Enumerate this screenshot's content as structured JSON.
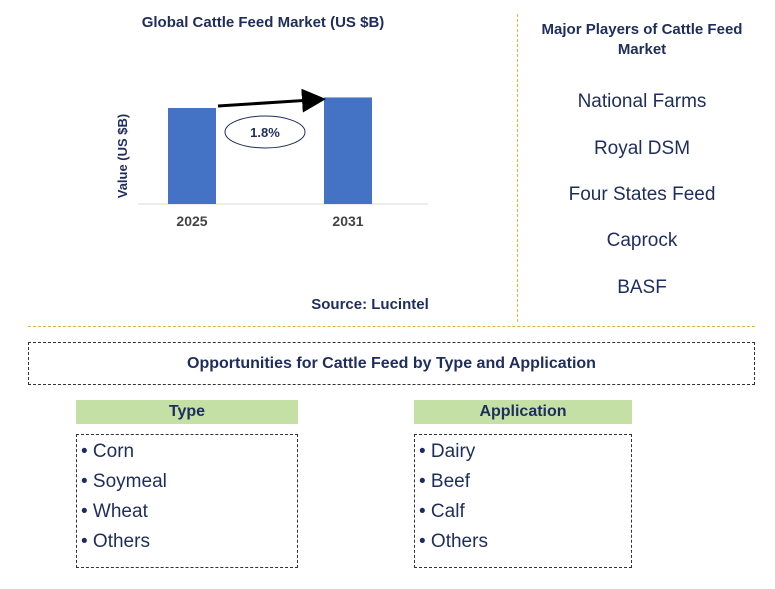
{
  "chart_data": {
    "type": "bar",
    "title": "Global Cattle Feed Market (US $B)",
    "ylabel": "Value (US $B)",
    "categories": [
      "2025",
      "2031"
    ],
    "values": [
      1.0,
      1.11
    ],
    "ylim": [
      0,
      1.5
    ],
    "annotation": "1.8%",
    "bar_color": "#4472c4"
  },
  "source": "Source: Lucintel",
  "players": {
    "title": "Major Players of Cattle Feed Market",
    "items": [
      "National Farms",
      "Royal DSM",
      "Four States Feed",
      "Caprock",
      "BASF"
    ]
  },
  "opportunities": {
    "title": "Opportunities for Cattle Feed by Type and Application",
    "type": {
      "header": "Type",
      "items": [
        "• Corn",
        "• Soymeal",
        "• Wheat",
        "• Others"
      ]
    },
    "application": {
      "header": "Application",
      "items": [
        "• Dairy",
        "• Beef",
        "• Calf",
        "• Others"
      ]
    }
  }
}
